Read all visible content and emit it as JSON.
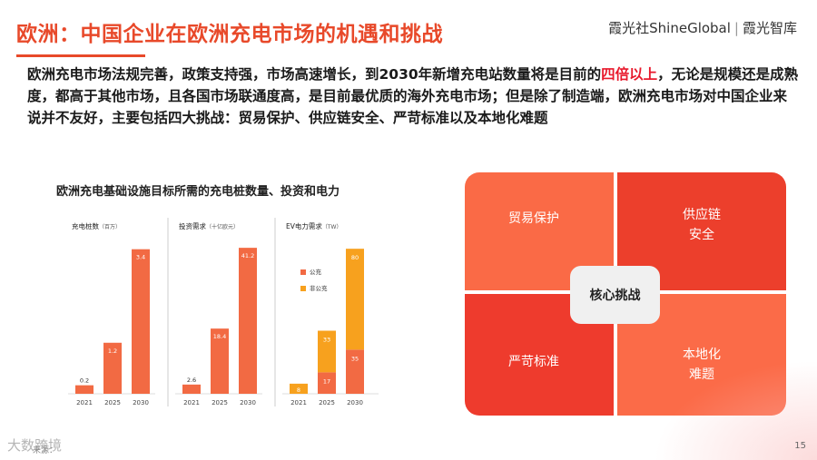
{
  "header": {
    "title": "欧洲：中国企业在欧洲充电市场的机遇和挑战",
    "logo_left": "霞光社ShineGlobal",
    "logo_sep": "|",
    "logo_right": "霞光智库"
  },
  "intro": {
    "part1": "欧洲充电市场法规完善，政策支持强，市场高速增长，到2030年新增充电站数量将是目前的",
    "highlight": "四倍以上",
    "part2": "，无论是规模还是成熟度，都高于其他市场，且各国市场联通度高，是目前最优质的海外充电市场；但是除了制造端，欧洲充电市场对中国企业来说并不友好，主要包括四大挑战：贸易保护、供应链安全、严苛标准以及本地化难题"
  },
  "chart_title": "欧洲充电基础设施目标所需的充电桩数量、投资和电力",
  "colors": {
    "accent": "#e8492a",
    "bar_public": "#f26a43",
    "bar_nonpublic": "#f7a11e"
  },
  "chart_data": [
    {
      "type": "bar",
      "title": "充电桩数",
      "unit": "（百万）",
      "categories": [
        "2021",
        "2025",
        "2030"
      ],
      "values": [
        0.2,
        1.2,
        3.4
      ],
      "labels": [
        "0.2",
        "1.2",
        "3.4"
      ]
    },
    {
      "type": "bar",
      "title": "投资需求",
      "unit": "（十亿欧元）",
      "categories": [
        "2021",
        "2025",
        "2030"
      ],
      "values": [
        2.6,
        18.4,
        41.2
      ],
      "labels": [
        "2.6",
        "18.4",
        "41.2"
      ]
    },
    {
      "type": "stacked_bar",
      "title": "EV电力需求",
      "unit": "（TW）",
      "categories": [
        "2021",
        "2025",
        "2030"
      ],
      "series": [
        {
          "name": "公充",
          "values": [
            0,
            17,
            35
          ],
          "labels": [
            "",
            "17",
            "35"
          ]
        },
        {
          "name": "非公充",
          "values": [
            8,
            33,
            80
          ],
          "labels": [
            "8",
            "33",
            "80"
          ]
        }
      ]
    }
  ],
  "challenges": {
    "top_left": "贸易保护",
    "top_right_1": "供应链",
    "top_right_2": "安全",
    "bottom_left": "严苛标准",
    "bottom_right_1": "本地化",
    "bottom_right_2": "难题",
    "center": "核心挑战"
  },
  "footer": {
    "watermark": "大数跨境",
    "source": "来源：",
    "page_number": "15"
  }
}
